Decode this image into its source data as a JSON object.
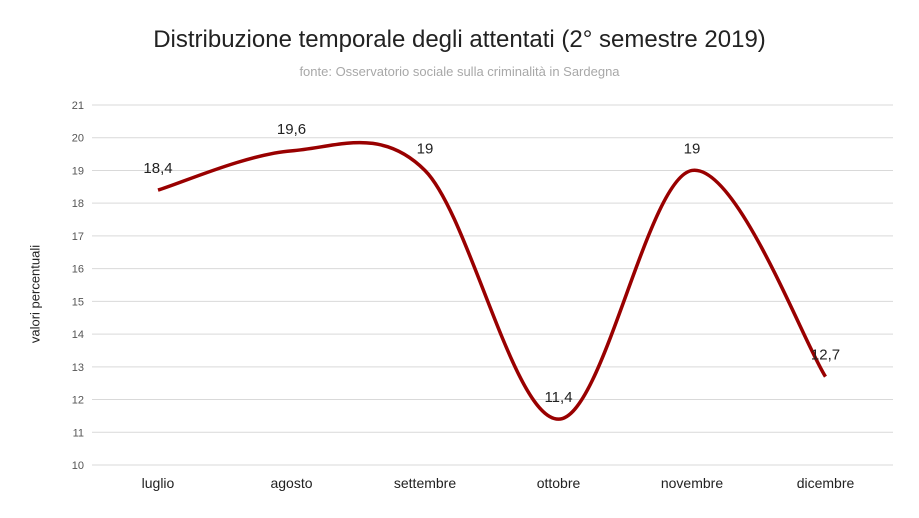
{
  "chart_data": {
    "type": "line",
    "title": "Distribuzione temporale degli attentati (2° semestre 2019)",
    "subtitle": "fonte: Osservatorio sociale sulla criminalità in Sardegna",
    "xlabel": "",
    "ylabel": "valori percentuali",
    "categories": [
      "luglio",
      "agosto",
      "settembre",
      "ottobre",
      "novembre",
      "dicembre"
    ],
    "series": [
      {
        "values": [
          18.4,
          19.6,
          19,
          11.4,
          19,
          12.7
        ],
        "labels": [
          "18,4",
          "19,6",
          "19",
          "11,4",
          "19",
          "12,7"
        ],
        "color": "#990000",
        "smooth": true
      }
    ],
    "ylim": [
      10,
      21
    ],
    "yticks": [
      10,
      11,
      12,
      13,
      14,
      15,
      16,
      17,
      18,
      19,
      20,
      21
    ],
    "grid": true,
    "gridColor": "#d9d9d9",
    "legend": "none"
  }
}
